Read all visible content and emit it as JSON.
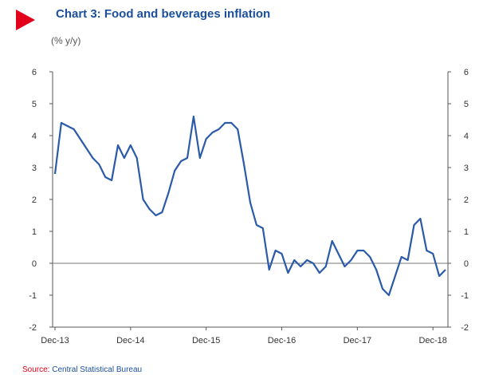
{
  "header": {
    "title": "Chart 3: Food and beverages inflation",
    "subtitle": "(% y/y)"
  },
  "footer": {
    "source_label": "Source:",
    "source_text": "Central Statistical Bureau"
  },
  "colors": {
    "line": "#2a5aa8",
    "title": "#1b4f9c",
    "marker": "#e3001b",
    "axis": "#555555"
  },
  "chart_data": {
    "type": "line",
    "title": "Chart 3: Food and beverages inflation",
    "ylabel": "(% y/y)",
    "xlabel": "",
    "ylim": [
      -2,
      6
    ],
    "yticks": [
      -2,
      -1,
      0,
      1,
      2,
      3,
      4,
      5,
      6
    ],
    "xtick_labels": [
      "Dec-13",
      "Dec-14",
      "Dec-15",
      "Dec-16",
      "Dec-17",
      "Dec-18"
    ],
    "zero_line": true,
    "grid": false,
    "legend": "none",
    "series": [
      {
        "x_start": "Dec-13",
        "frequency": "monthly",
        "values": [
          2.8,
          4.4,
          4.3,
          4.2,
          3.9,
          3.6,
          3.3,
          3.1,
          2.7,
          2.6,
          3.7,
          3.3,
          3.7,
          3.3,
          2.0,
          1.7,
          1.5,
          1.6,
          2.2,
          2.9,
          3.2,
          3.3,
          4.6,
          3.3,
          3.9,
          4.1,
          4.2,
          4.4,
          4.4,
          4.2,
          3.1,
          1.9,
          1.2,
          1.1,
          -0.2,
          0.4,
          0.3,
          -0.3,
          0.1,
          -0.1,
          0.1,
          0.0,
          -0.3,
          -0.1,
          0.7,
          0.3,
          -0.1,
          0.1,
          0.4,
          0.4,
          0.2,
          -0.2,
          -0.8,
          -1.0,
          -0.4,
          0.2,
          0.1,
          1.2,
          1.4,
          0.4,
          0.3,
          -0.4,
          -0.2
        ]
      }
    ]
  }
}
